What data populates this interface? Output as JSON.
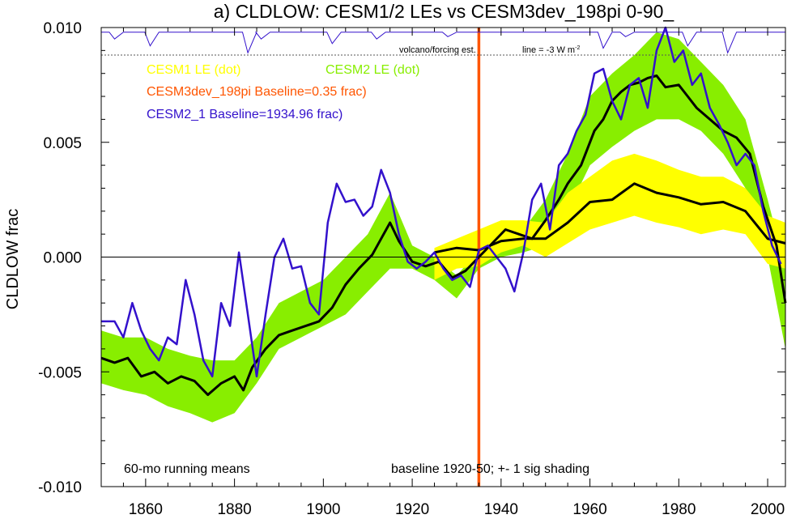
{
  "chart_data": {
    "type": "line",
    "title": "a) CLDLOW: CESM1/2 LEs vs CESM3dev_198pi 0-90_",
    "ylabel": "CLDLOW frac",
    "xlabel": "",
    "xlim": [
      1850,
      2004
    ],
    "ylim": [
      -0.01,
      0.01
    ],
    "x_ticks": [
      1860,
      1880,
      1900,
      1920,
      1940,
      1960,
      1980,
      2000
    ],
    "y_ticks": [
      {
        "value": 0.01,
        "label": "0.010"
      },
      {
        "value": 0.005,
        "label": "0.005"
      },
      {
        "value": 0.0,
        "label": "0.000"
      },
      {
        "value": -0.005,
        "label": "-0.005"
      },
      {
        "value": -0.01,
        "label": "-0.010"
      }
    ],
    "zero_line": 0.0,
    "legend": [
      {
        "label": "CESM1 LE (dot)",
        "color": "#ffff00"
      },
      {
        "label": "CESM2 LE (dot)",
        "color": "#88ee00"
      },
      {
        "label": "CESM3dev_198pi Baseline=0.35 frac)",
        "color": "#ff5500"
      },
      {
        "label": "CESM2_1 Baseline=1934.96 frac)",
        "color": "#3311cc"
      }
    ],
    "annotations": {
      "volcano_label": "volcano/forcing est.",
      "volcano_scale": "line = -3 W m",
      "volcano_scale_sup": "-2",
      "running_means": "60-mo running means",
      "baseline_note": "baseline 1920-50; +- 1 sig shading"
    },
    "vertical_line": {
      "x": 1935,
      "color": "#ff5500"
    },
    "series": [
      {
        "name": "CESM2 LE",
        "kind": "band",
        "color": "#88ee00",
        "x": [
          1850,
          1855,
          1860,
          1865,
          1870,
          1875,
          1880,
          1885,
          1890,
          1895,
          1900,
          1905,
          1910,
          1915,
          1920,
          1925,
          1930,
          1935,
          1940,
          1945,
          1950,
          1955,
          1960,
          1965,
          1970,
          1975,
          1980,
          1985,
          1990,
          1995,
          2000,
          2004
        ],
        "lower": [
          -0.0055,
          -0.0058,
          -0.006,
          -0.0065,
          -0.0068,
          -0.0072,
          -0.0068,
          -0.0055,
          -0.004,
          -0.0035,
          -0.003,
          -0.0025,
          -0.0015,
          -0.0005,
          -0.0005,
          -0.001,
          -0.0018,
          -0.0005,
          0.0,
          0.0002,
          0.0005,
          0.002,
          0.004,
          0.0048,
          0.0055,
          0.006,
          0.006,
          0.0055,
          0.0045,
          0.003,
          0.0,
          -0.004
        ],
        "upper": [
          -0.0032,
          -0.0035,
          -0.0035,
          -0.004,
          -0.0043,
          -0.0045,
          -0.0045,
          -0.0035,
          -0.002,
          -0.0015,
          -0.001,
          0.0,
          0.001,
          0.0028,
          0.0005,
          0.0,
          -0.0008,
          0.0003,
          0.0008,
          0.0012,
          0.0025,
          0.0045,
          0.007,
          0.008,
          0.0088,
          0.0098,
          0.0095,
          0.0085,
          0.0075,
          0.006,
          0.0025,
          -0.0005
        ]
      },
      {
        "name": "CESM1 LE",
        "kind": "band",
        "color": "#ffff00",
        "x": [
          1925,
          1930,
          1935,
          1940,
          1945,
          1950,
          1955,
          1960,
          1965,
          1970,
          1975,
          1980,
          1985,
          1990,
          1995,
          2000,
          2004
        ],
        "lower": [
          -0.001,
          -0.0005,
          -0.0004,
          0.0002,
          0.0005,
          0.0,
          0.0006,
          0.0012,
          0.0015,
          0.0018,
          0.0015,
          0.0013,
          0.001,
          0.0012,
          0.001,
          -0.0003,
          -0.0005
        ],
        "upper": [
          0.0004,
          0.0008,
          0.0012,
          0.0016,
          0.0016,
          0.0015,
          0.0028,
          0.0035,
          0.0042,
          0.0045,
          0.0042,
          0.0038,
          0.0035,
          0.0035,
          0.003,
          0.0018,
          0.0015
        ]
      },
      {
        "name": "CESM2 LE mean",
        "kind": "line",
        "color": "#000000",
        "x": [
          1850,
          1853,
          1856,
          1859,
          1862,
          1865,
          1868,
          1871,
          1874,
          1877,
          1880,
          1882,
          1884,
          1887,
          1890,
          1893,
          1896,
          1899,
          1902,
          1905,
          1908,
          1911,
          1913,
          1915,
          1917,
          1920,
          1923,
          1926,
          1929,
          1932,
          1935,
          1938,
          1941,
          1944,
          1947,
          1950,
          1953,
          1955,
          1958,
          1961,
          1963,
          1965,
          1967,
          1969,
          1971,
          1973,
          1975,
          1977,
          1980,
          1982,
          1984,
          1987,
          1990,
          1993,
          1996,
          1999,
          2002,
          2004
        ],
        "y": [
          -0.0044,
          -0.0046,
          -0.0044,
          -0.0052,
          -0.005,
          -0.0055,
          -0.0052,
          -0.0054,
          -0.006,
          -0.0055,
          -0.0052,
          -0.0058,
          -0.0048,
          -0.004,
          -0.0034,
          -0.0032,
          -0.003,
          -0.0028,
          -0.0022,
          -0.0012,
          -0.0005,
          0.0001,
          0.0008,
          0.0015,
          0.0007,
          -0.0002,
          -0.0004,
          -0.0002,
          -0.0009,
          -0.0006,
          0.0,
          0.0006,
          0.0012,
          0.001,
          0.0008,
          0.0016,
          0.0025,
          0.0032,
          0.004,
          0.0055,
          0.006,
          0.0068,
          0.0072,
          0.0075,
          0.0076,
          0.0078,
          0.0079,
          0.0074,
          0.0075,
          0.007,
          0.0065,
          0.006,
          0.0055,
          0.0052,
          0.0045,
          0.0022,
          0.0005,
          -0.002
        ]
      },
      {
        "name": "CESM1 LE mean",
        "kind": "line",
        "color": "#000000",
        "x": [
          1925,
          1930,
          1935,
          1940,
          1945,
          1950,
          1955,
          1960,
          1965,
          1970,
          1975,
          1980,
          1985,
          1990,
          1995,
          2000,
          2004
        ],
        "y": [
          0.0002,
          0.0004,
          0.0003,
          0.0007,
          0.0008,
          0.0008,
          0.0015,
          0.0024,
          0.0025,
          0.0032,
          0.0028,
          0.0026,
          0.0023,
          0.0024,
          0.002,
          0.0008,
          0.0006
        ]
      },
      {
        "name": "CESM2_1",
        "kind": "line",
        "color": "#3311cc",
        "x": [
          1850,
          1853,
          1855,
          1857,
          1859,
          1861,
          1863,
          1865,
          1867,
          1869,
          1871,
          1873,
          1875,
          1877,
          1879,
          1881,
          1883,
          1885,
          1887,
          1889,
          1891,
          1893,
          1895,
          1897,
          1899,
          1901,
          1903,
          1905,
          1907,
          1909,
          1911,
          1913,
          1915,
          1917,
          1919,
          1921,
          1923,
          1925,
          1927,
          1929,
          1931,
          1933,
          1935,
          1937,
          1939,
          1941,
          1943,
          1945,
          1947,
          1949,
          1951,
          1953,
          1955,
          1957,
          1959,
          1961,
          1963,
          1965,
          1967,
          1969,
          1971,
          1973,
          1975,
          1977,
          1979,
          1981,
          1983,
          1985,
          1987,
          1989,
          1991,
          1993,
          1995,
          1997,
          1999,
          2001,
          2003
        ],
        "y": [
          -0.0028,
          -0.0028,
          -0.0035,
          -0.002,
          -0.0032,
          -0.004,
          -0.0045,
          -0.0035,
          -0.0038,
          -0.001,
          -0.0025,
          -0.0045,
          -0.0052,
          -0.002,
          -0.003,
          0.0002,
          -0.0025,
          -0.0052,
          -0.0025,
          0.0,
          0.0008,
          -0.0005,
          -0.0004,
          -0.002,
          -0.0025,
          0.0015,
          0.0032,
          0.0024,
          0.0025,
          0.0018,
          0.0022,
          0.0038,
          0.0028,
          0.001,
          -0.0002,
          -0.0005,
          -0.0002,
          0.0002,
          -0.0005,
          -0.001,
          -0.0008,
          -0.0013,
          0.0003,
          0.0005,
          0.0,
          -0.0005,
          -0.0015,
          0.0002,
          0.0025,
          0.0032,
          0.0012,
          0.004,
          0.0045,
          0.0055,
          0.0062,
          0.008,
          0.0082,
          0.0068,
          0.006,
          0.0075,
          0.0078,
          0.0065,
          0.009,
          0.01,
          0.0085,
          0.009,
          0.0075,
          0.008,
          0.0065,
          0.0058,
          0.005,
          0.004,
          0.0045,
          0.004,
          0.002,
          0.0005,
          -0.0003
        ]
      }
    ],
    "volcano_series": {
      "color": "#3311cc",
      "baseline": 0.0098,
      "events": [
        {
          "year": 1853,
          "depth": 0.0003
        },
        {
          "year": 1861,
          "depth": 0.0006
        },
        {
          "year": 1883,
          "depth": 0.0009
        },
        {
          "year": 1886,
          "depth": 0.0003
        },
        {
          "year": 1902,
          "depth": 0.0005
        },
        {
          "year": 1912,
          "depth": 0.0003
        },
        {
          "year": 1928,
          "depth": 0.0002
        },
        {
          "year": 1963,
          "depth": 0.0007
        },
        {
          "year": 1968,
          "depth": 0.0002
        },
        {
          "year": 1982,
          "depth": 0.0006
        },
        {
          "year": 1991,
          "depth": 0.0009
        }
      ]
    }
  }
}
